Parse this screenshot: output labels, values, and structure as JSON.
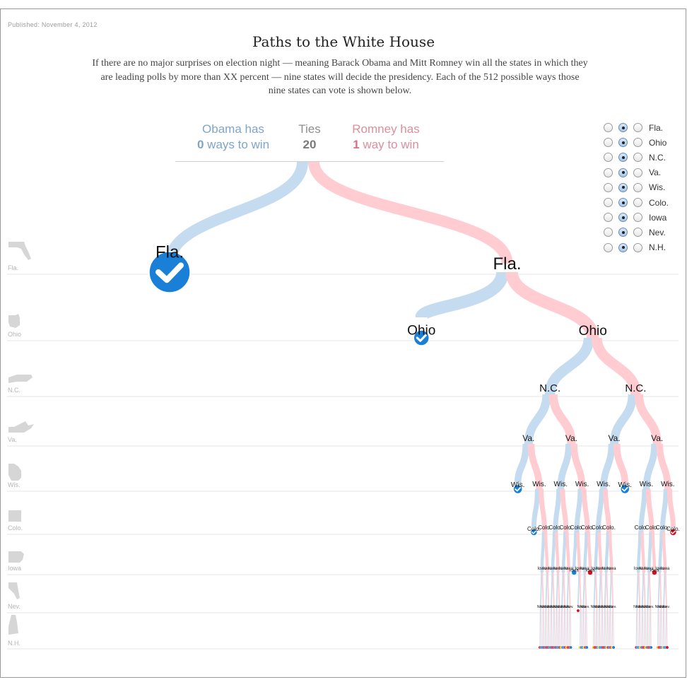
{
  "header": {
    "published": "Published: November 4, 2012",
    "title": "Paths to the White House",
    "intro": "If there are no major surprises on election night — meaning Barack Obama and Mitt Romney win all the states in which they are leading polls by more than XX percent — nine states will decide the presidency. Each of the 512 possible ways those nine states can vote is shown below."
  },
  "tally": {
    "obama": {
      "label": "Obama has",
      "count": "0",
      "suffix": " ways to win"
    },
    "ties": {
      "label": "Ties",
      "count": "20"
    },
    "romney": {
      "label": "Romney has",
      "count": "1",
      "suffix": " way to win"
    }
  },
  "states": [
    {
      "name": "Fla.",
      "icon": "florida-icon",
      "selected": "undecided"
    },
    {
      "name": "Ohio",
      "icon": "ohio-icon",
      "selected": "undecided"
    },
    {
      "name": "N.C.",
      "icon": "north-carolina-icon",
      "selected": "undecided"
    },
    {
      "name": "Va.",
      "icon": "virginia-icon",
      "selected": "undecided"
    },
    {
      "name": "Wis.",
      "icon": "wisconsin-icon",
      "selected": "undecided"
    },
    {
      "name": "Colo.",
      "icon": "colorado-icon",
      "selected": "undecided"
    },
    {
      "name": "Iowa",
      "icon": "iowa-icon",
      "selected": "undecided"
    },
    {
      "name": "Nev.",
      "icon": "nevada-icon",
      "selected": "undecided"
    },
    {
      "name": "N.H.",
      "icon": "new-hampshire-icon",
      "selected": "undecided"
    }
  ],
  "colors": {
    "obama_path": "#c5dcf0",
    "romney_path": "#ffccd2",
    "obama_win": "#1a7fd6",
    "romney_win": "#d3101f",
    "tie": "#f5c400"
  }
}
